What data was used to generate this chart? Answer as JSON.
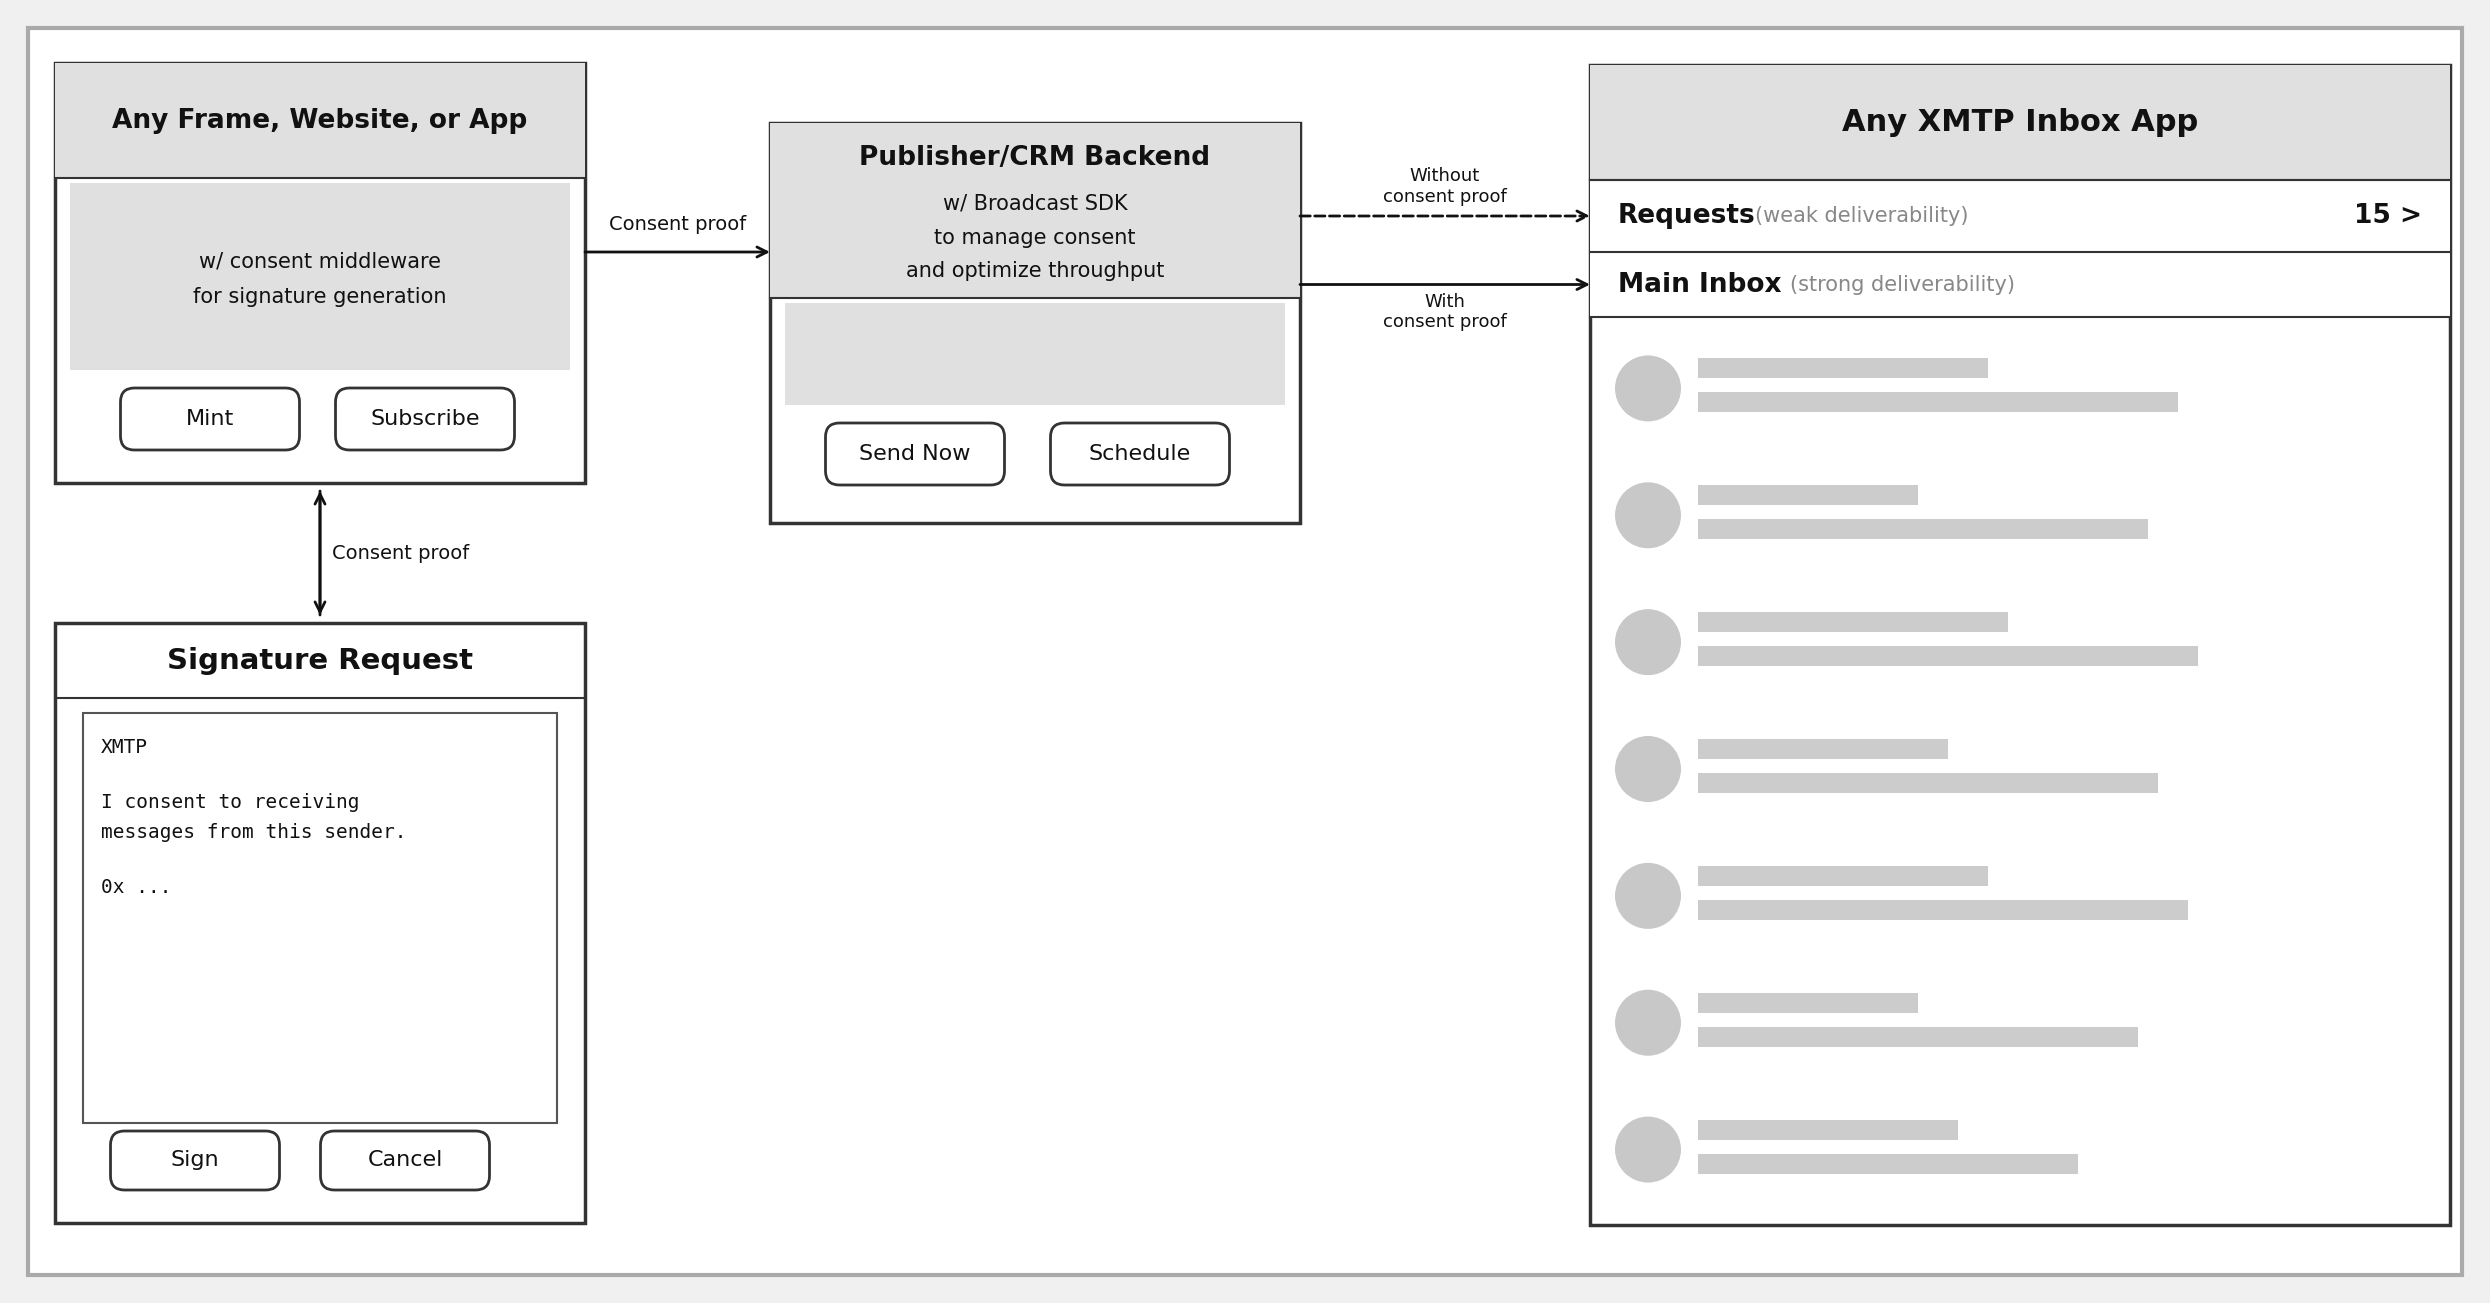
{
  "bg_color": "#f0f0f0",
  "outer_bg": "#ffffff",
  "box_border": "#333333",
  "box_bg": "#ffffff",
  "header_bg": "#e0e0e0",
  "light_gray": "#cccccc",
  "button_bg": "#ffffff",
  "text_color": "#111111",
  "gray_text": "#888888",
  "mono_color": "#111111",
  "panel1_title": "Any Frame, Website, or App",
  "panel1_sub1": "w/ consent middleware",
  "panel1_sub2": "for signature generation",
  "panel1_btn1": "Mint",
  "panel1_btn2": "Subscribe",
  "panel2_title": "Publisher/CRM Backend",
  "panel2_sub1": "w/ Broadcast SDK",
  "panel2_sub2": "to manage consent",
  "panel2_sub3": "and optimize throughput",
  "panel2_btn1": "Send Now",
  "panel2_btn2": "Schedule",
  "panel3_title": "Any XMTP Inbox App",
  "requests_label": "Requests",
  "requests_sub": "(weak deliverability)",
  "requests_num": "15 >",
  "maininbox_label": "Main Inbox",
  "maininbox_sub": "(strong deliverability)",
  "arrow1_label": "Consent proof",
  "arrow2_label": "Consent proof",
  "arrow3_label": "Without\nconsent proof",
  "arrow4_label": "With\nconsent proof",
  "sig_title": "Signature Request",
  "sig_line1": "XMTP",
  "sig_line2": "I consent to receiving",
  "sig_line3": "messages from this sender.",
  "sig_line4": "0x ...",
  "sig_btn1": "Sign",
  "sig_btn2": "Cancel"
}
